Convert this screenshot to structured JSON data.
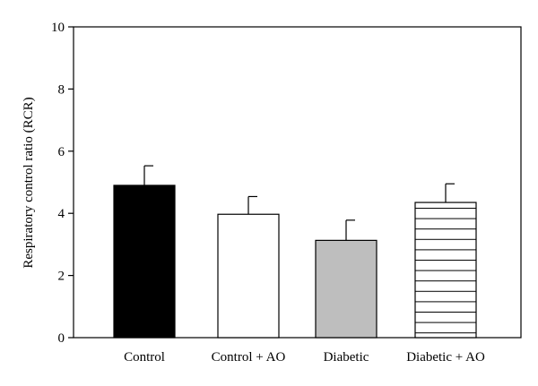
{
  "chart_data": {
    "type": "bar",
    "title": "",
    "xlabel": "",
    "ylabel": "Respiratory control ratio (RCR)",
    "ylim": [
      0,
      10
    ],
    "yticks": [
      "0",
      "2",
      "4",
      "6",
      "8",
      "10"
    ],
    "categories": [
      "Control",
      "Control + AO",
      "Diabetic",
      "Diabetic + AO"
    ],
    "values": [
      4.9,
      3.97,
      3.13,
      4.35
    ],
    "errors": [
      0.63,
      0.57,
      0.65,
      0.6
    ],
    "fills": [
      "solid-black",
      "white",
      "solid-gray",
      "horizontal-stripes"
    ],
    "colors": {
      "black": "#000000",
      "white": "#ffffff",
      "gray": "#bebebe"
    },
    "grid": false,
    "legend": "none"
  }
}
